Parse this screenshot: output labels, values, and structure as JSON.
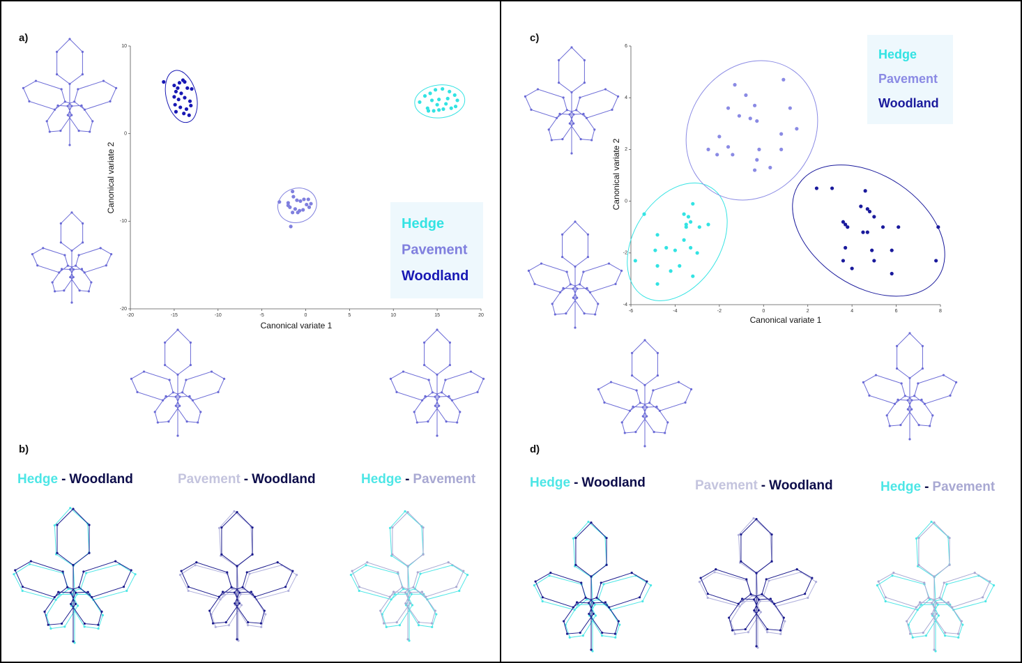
{
  "chart_data": [
    {
      "type": "scatter",
      "panel": "a)",
      "xlabel": "Canonical variate 1",
      "ylabel": "Canonical variate 2",
      "xlim": [
        -20,
        20
      ],
      "ylim": [
        -20,
        10
      ],
      "xticks": [
        -20,
        -15,
        -10,
        -5,
        0,
        5,
        10,
        15,
        20
      ],
      "yticks": [
        -20,
        -10,
        0,
        10
      ],
      "legend": "lower right",
      "series": [
        {
          "name": "Hedge",
          "color": "#33e3e3",
          "x": [
            13.0,
            13.6,
            14.2,
            14.8,
            15.6,
            16.4,
            17.0,
            17.3,
            16.2,
            15.2,
            14.4,
            13.9,
            14.6,
            15.2,
            15.7,
            16.6,
            17.1,
            15.0,
            14.0,
            16.0
          ],
          "y": [
            3.6,
            4.3,
            4.6,
            5.0,
            5.1,
            4.8,
            4.4,
            3.8,
            4.0,
            3.9,
            3.8,
            2.9,
            2.6,
            2.7,
            2.8,
            2.9,
            3.1,
            3.3,
            2.6,
            3.4
          ]
        },
        {
          "name": "Pavement",
          "color": "#7f7fde",
          "x": [
            -3.0,
            -2.0,
            -1.5,
            -1.4,
            -1.0,
            -0.6,
            -0.2,
            0.3,
            0.6,
            -1.8,
            -1.2,
            -0.7,
            -0.3,
            0.4,
            -1.5,
            -0.9,
            -2.0,
            -1.7,
            0.1
          ],
          "y": [
            -7.8,
            -7.9,
            -6.6,
            -7.2,
            -7.6,
            -7.7,
            -7.5,
            -7.5,
            -8.0,
            -8.4,
            -8.6,
            -8.8,
            -8.7,
            -8.4,
            -9.0,
            -9.0,
            -8.2,
            -10.6,
            -8.1
          ]
        },
        {
          "name": "Woodland",
          "color": "#1818b4",
          "x": [
            -16.2,
            -15.0,
            -14.4,
            -13.8,
            -14.8,
            -14.2,
            -13.5,
            -13.0,
            -15.0,
            -14.5,
            -13.8,
            -13.2,
            -14.9,
            -14.3,
            -13.6,
            -13.1,
            -14.8,
            -13.9,
            -13.3,
            -14.0,
            -14.6
          ],
          "y": [
            5.9,
            5.5,
            5.8,
            5.9,
            4.8,
            4.6,
            5.2,
            5.1,
            4.2,
            3.9,
            4.1,
            3.7,
            3.3,
            3.0,
            2.8,
            3.2,
            2.5,
            2.3,
            2.1,
            6.1,
            5.2
          ]
        }
      ]
    },
    {
      "type": "scatter",
      "panel": "c)",
      "xlabel": "Canonical variate 1",
      "ylabel": "Canonical variate 2",
      "xlim": [
        -6,
        8
      ],
      "ylim": [
        -4,
        6
      ],
      "xticks": [
        -6,
        -4,
        -2,
        0,
        2,
        4,
        6,
        8
      ],
      "yticks": [
        -4,
        -2,
        0,
        2,
        4,
        6
      ],
      "legend": "upper right",
      "series": [
        {
          "name": "Hedge",
          "color": "#33e3e3",
          "x": [
            -5.4,
            -5.8,
            -4.8,
            -4.9,
            -4.4,
            -4.0,
            -3.6,
            -3.3,
            -3.5,
            -3.4,
            -3.2,
            -3.3,
            -3.6,
            -2.9,
            -2.5,
            -3.0,
            -4.8,
            -4.2,
            -3.8,
            -3.2,
            -4.8,
            -3.5
          ],
          "y": [
            -0.5,
            -2.3,
            -1.3,
            -1.9,
            -1.8,
            -1.9,
            -1.5,
            -1.8,
            -0.9,
            -0.6,
            -0.1,
            -0.8,
            -0.5,
            -1.0,
            -0.9,
            -2.0,
            -2.5,
            -2.7,
            -2.5,
            -2.9,
            -3.2,
            -1.0
          ]
        },
        {
          "name": "Pavement",
          "color": "#8a8ae4",
          "x": [
            -1.3,
            -0.8,
            0.9,
            -1.6,
            -0.4,
            1.2,
            -1.1,
            -0.6,
            -0.3,
            1.5,
            -2.0,
            0.8,
            -1.6,
            -2.5,
            -2.1,
            -1.4,
            -0.2,
            -0.3,
            0.8,
            -0.4,
            0.3
          ],
          "y": [
            4.5,
            4.1,
            4.7,
            3.6,
            3.7,
            3.6,
            3.3,
            3.2,
            3.1,
            2.8,
            2.5,
            2.6,
            2.1,
            2.0,
            1.8,
            1.8,
            2.0,
            1.6,
            2.0,
            1.2,
            1.3
          ]
        },
        {
          "name": "Woodland",
          "color": "#1a1a9c",
          "x": [
            2.4,
            3.1,
            4.6,
            3.6,
            3.7,
            3.8,
            4.4,
            4.7,
            4.8,
            5.0,
            4.5,
            4.7,
            5.4,
            6.1,
            7.9,
            3.7,
            4.9,
            3.6,
            5.0,
            5.8,
            7.8,
            4.0,
            5.8
          ],
          "y": [
            0.5,
            0.5,
            0.4,
            -0.8,
            -0.9,
            -1.0,
            -0.2,
            -0.3,
            -0.4,
            -0.6,
            -1.2,
            -1.2,
            -1.0,
            -1.0,
            -1.0,
            -1.8,
            -1.9,
            -2.3,
            -2.3,
            -1.9,
            -2.3,
            -2.6,
            -2.8
          ]
        }
      ]
    }
  ],
  "comparisons": [
    {
      "panel": "b)",
      "items": [
        {
          "first": {
            "text": "Hedge",
            "color": "#4de6e6"
          },
          "separator": "-",
          "second": {
            "text": "Woodland",
            "color": "#0d0d4a"
          }
        },
        {
          "first": {
            "text": "Pavement",
            "color": "#c4c4de"
          },
          "separator": "-",
          "second": {
            "text": "Woodland",
            "color": "#0d0d4a"
          }
        },
        {
          "first": {
            "text": "Hedge",
            "color": "#4de6e6"
          },
          "separator": "-",
          "second": {
            "text": "Pavement",
            "color": "#a8a8d2"
          }
        }
      ]
    },
    {
      "panel": "d)",
      "items": [
        {
          "first": {
            "text": "Hedge",
            "color": "#4de6e6"
          },
          "separator": "-",
          "second": {
            "text": "Woodland",
            "color": "#0d0d4a"
          }
        },
        {
          "first": {
            "text": "Pavement",
            "color": "#c4c4de"
          },
          "separator": "-",
          "second": {
            "text": "Woodland",
            "color": "#0d0d4a"
          }
        },
        {
          "first": {
            "text": "Hedge",
            "color": "#4de6e6"
          },
          "separator": "-",
          "second": {
            "text": "Pavement",
            "color": "#a8a8d2"
          }
        }
      ]
    }
  ]
}
